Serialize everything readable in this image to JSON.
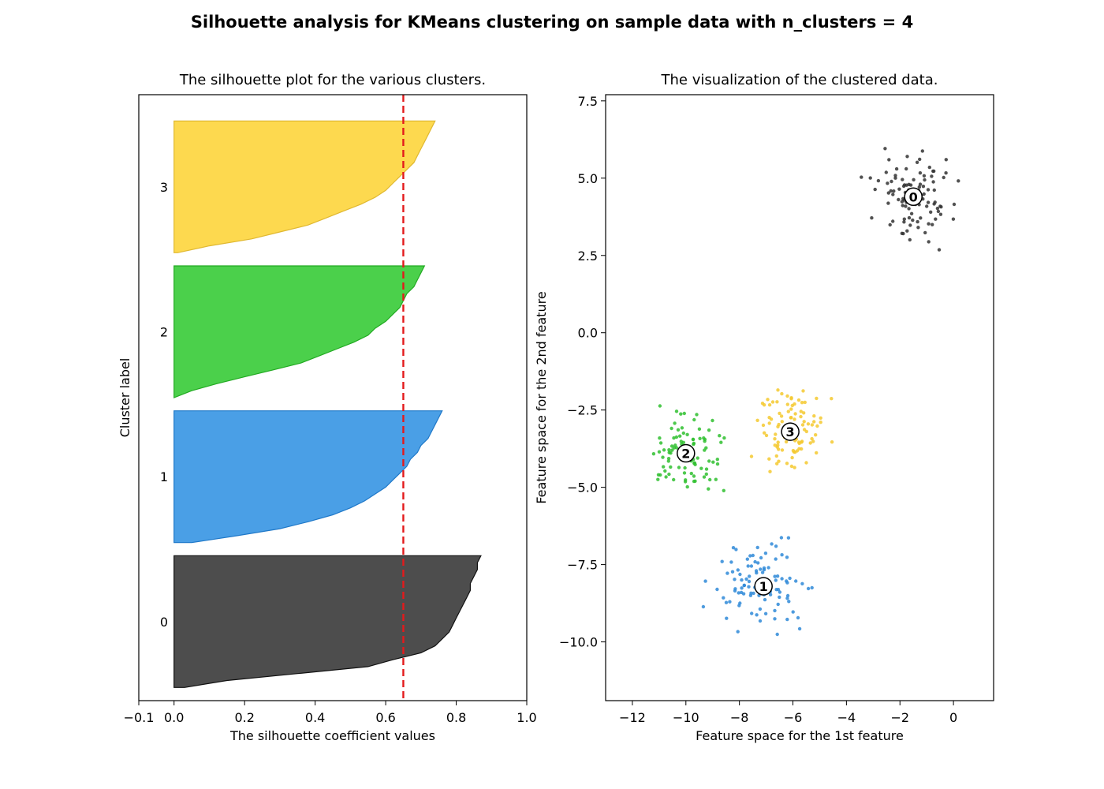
{
  "figure": {
    "suptitle": "Silhouette analysis for KMeans clustering on sample data with n_clusters = 4"
  },
  "colors": {
    "cluster_0": "#4d4d4d",
    "cluster_1": "#4a9fe6",
    "cluster_2": "#4bd04b",
    "cluster_3": "#fdd94f",
    "average_line": "#e31a1c",
    "point_0": "#333333",
    "point_1": "#2f8ad8",
    "point_2": "#2fbf2f",
    "point_3": "#f5c92f"
  },
  "chart_data": [
    {
      "type": "area",
      "title": "The silhouette plot for the various clusters.",
      "xlabel": "The silhouette coefficient values",
      "ylabel": "Cluster label",
      "xlim": [
        -0.1,
        1.0
      ],
      "ylim": [
        0,
        460
      ],
      "xticks": [
        "−0.1",
        "0.0",
        "0.2",
        "0.4",
        "0.6",
        "0.8",
        "1.0"
      ],
      "xtick_values": [
        -0.1,
        0.0,
        0.2,
        0.4,
        0.6,
        0.8,
        1.0
      ],
      "average_silhouette_score": 0.65,
      "clusters": [
        {
          "label": "0",
          "size": 100,
          "coefficients": [
            0.87,
            0.86,
            0.86,
            0.85,
            0.84,
            0.84,
            0.83,
            0.82,
            0.81,
            0.8,
            0.79,
            0.78,
            0.76,
            0.74,
            0.7,
            0.62,
            0.55,
            0.35,
            0.15,
            0.03
          ]
        },
        {
          "label": "1",
          "size": 100,
          "coefficients": [
            0.76,
            0.75,
            0.74,
            0.73,
            0.72,
            0.7,
            0.69,
            0.67,
            0.66,
            0.64,
            0.62,
            0.6,
            0.57,
            0.54,
            0.5,
            0.45,
            0.38,
            0.3,
            0.18,
            0.05
          ]
        },
        {
          "label": "2",
          "size": 100,
          "coefficients": [
            0.71,
            0.7,
            0.69,
            0.68,
            0.66,
            0.65,
            0.64,
            0.62,
            0.6,
            0.57,
            0.55,
            0.51,
            0.46,
            0.41,
            0.36,
            0.28,
            0.2,
            0.12,
            0.05,
            0.0
          ]
        },
        {
          "label": "3",
          "size": 100,
          "coefficients": [
            0.74,
            0.73,
            0.72,
            0.71,
            0.7,
            0.69,
            0.68,
            0.66,
            0.64,
            0.62,
            0.6,
            0.57,
            0.53,
            0.48,
            0.43,
            0.38,
            0.3,
            0.22,
            0.1,
            0.01
          ]
        }
      ]
    },
    {
      "type": "scatter",
      "title": "The visualization of the clustered data.",
      "xlabel": "Feature space for the 1st feature",
      "ylabel": "Feature space for the 2nd feature",
      "xlim": [
        -13.0,
        1.5
      ],
      "ylim": [
        -11.9,
        7.7
      ],
      "xticks": [
        "−12",
        "−10",
        "−8",
        "−6",
        "−4",
        "−2",
        "0"
      ],
      "xtick_values": [
        -12,
        -10,
        -8,
        -6,
        -4,
        -2,
        0
      ],
      "yticks": [
        "7.5",
        "5.0",
        "2.5",
        "0.0",
        "−2.5",
        "−5.0",
        "−7.5",
        "−10.0"
      ],
      "ytick_values": [
        7.5,
        5.0,
        2.5,
        0.0,
        -2.5,
        -5.0,
        -7.5,
        -10.0
      ],
      "centers": [
        {
          "label": "0",
          "x": -1.5,
          "y": 4.4
        },
        {
          "label": "1",
          "x": -7.1,
          "y": -8.2
        },
        {
          "label": "2",
          "x": -10.0,
          "y": -3.9
        },
        {
          "label": "3",
          "x": -6.1,
          "y": -3.2
        }
      ],
      "cluster_spread": [
        {
          "label": "0",
          "x_min": -4.3,
          "x_max": 0.9,
          "y_min": 2.0,
          "y_max": 6.8
        },
        {
          "label": "1",
          "x_min": -9.9,
          "x_max": -3.8,
          "y_min": -10.9,
          "y_max": -6.4
        },
        {
          "label": "2",
          "x_min": -12.5,
          "x_max": -7.8,
          "y_min": -6.1,
          "y_max": -1.9
        },
        {
          "label": "3",
          "x_min": -8.3,
          "x_max": -3.9,
          "y_min": -5.5,
          "y_max": -0.7
        }
      ],
      "points_per_cluster": 100
    }
  ]
}
